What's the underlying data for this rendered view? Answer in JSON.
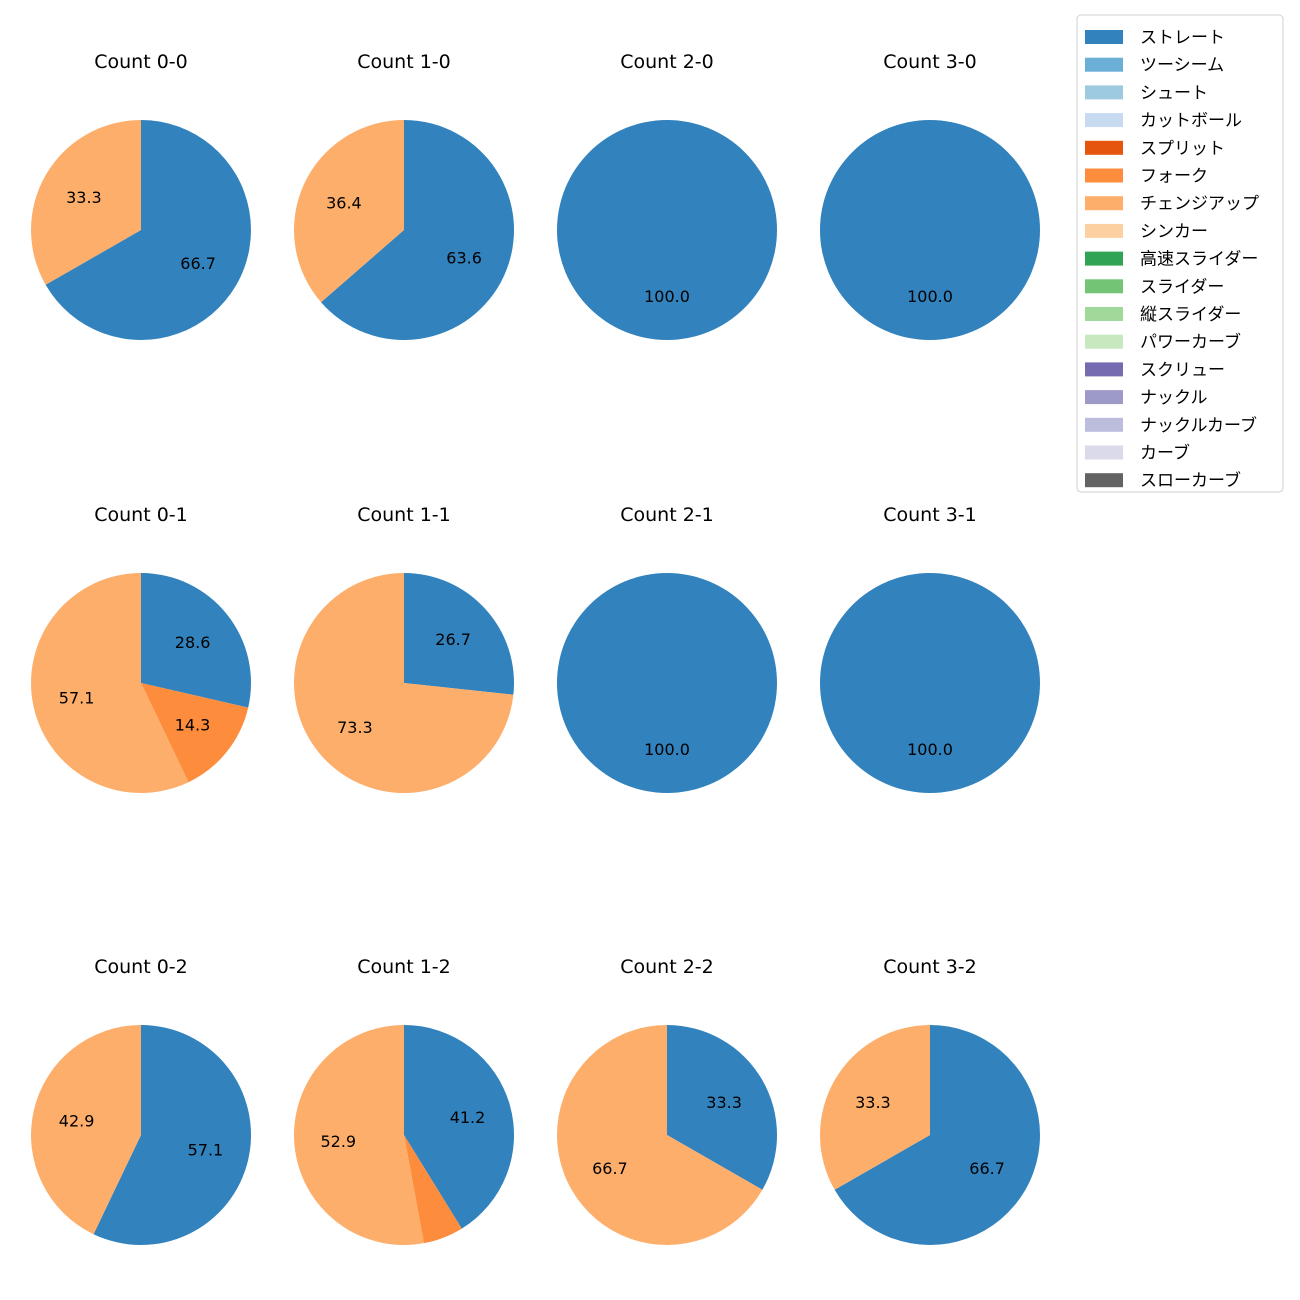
{
  "chart_data": {
    "type": "pie",
    "legend": {
      "placement": "top-right",
      "entries": [
        {
          "label": "ストレート",
          "color": "#3182bd"
        },
        {
          "label": "ツーシーム",
          "color": "#6baed6"
        },
        {
          "label": "シュート",
          "color": "#9ecae1"
        },
        {
          "label": "カットボール",
          "color": "#c6dbef"
        },
        {
          "label": "スプリット",
          "color": "#e6550d"
        },
        {
          "label": "フォーク",
          "color": "#fd8d3c"
        },
        {
          "label": "チェンジアップ",
          "color": "#fdae6b"
        },
        {
          "label": "シンカー",
          "color": "#fdd0a2"
        },
        {
          "label": "高速スライダー",
          "color": "#31a354"
        },
        {
          "label": "スライダー",
          "color": "#74c476"
        },
        {
          "label": "縦スライダー",
          "color": "#a1d99b"
        },
        {
          "label": "パワーカーブ",
          "color": "#c7e9c0"
        },
        {
          "label": "スクリュー",
          "color": "#756bb1"
        },
        {
          "label": "ナックル",
          "color": "#9e9ac8"
        },
        {
          "label": "ナックルカーブ",
          "color": "#bcbddc"
        },
        {
          "label": "カーブ",
          "color": "#dadaeb"
        },
        {
          "label": "スローカーブ",
          "color": "#636363"
        }
      ]
    },
    "pies": [
      {
        "title": "Count 0-0",
        "slices": [
          {
            "label": "ストレート",
            "value": 66.7,
            "text": "66.7"
          },
          {
            "label": "チェンジアップ",
            "value": 33.3,
            "text": "33.3"
          }
        ]
      },
      {
        "title": "Count 1-0",
        "slices": [
          {
            "label": "ストレート",
            "value": 63.6,
            "text": "63.6"
          },
          {
            "label": "チェンジアップ",
            "value": 36.4,
            "text": "36.4"
          }
        ]
      },
      {
        "title": "Count 2-0",
        "slices": [
          {
            "label": "ストレート",
            "value": 100.0,
            "text": "100.0"
          }
        ]
      },
      {
        "title": "Count 3-0",
        "slices": [
          {
            "label": "ストレート",
            "value": 100.0,
            "text": "100.0"
          }
        ]
      },
      {
        "title": "Count 0-1",
        "slices": [
          {
            "label": "ストレート",
            "value": 28.6,
            "text": "28.6"
          },
          {
            "label": "フォーク",
            "value": 14.3,
            "text": "14.3"
          },
          {
            "label": "チェンジアップ",
            "value": 57.1,
            "text": "57.1"
          }
        ]
      },
      {
        "title": "Count 1-1",
        "slices": [
          {
            "label": "ストレート",
            "value": 26.7,
            "text": "26.7"
          },
          {
            "label": "チェンジアップ",
            "value": 73.3,
            "text": "73.3"
          }
        ]
      },
      {
        "title": "Count 2-1",
        "slices": [
          {
            "label": "ストレート",
            "value": 100.0,
            "text": "100.0"
          }
        ]
      },
      {
        "title": "Count 3-1",
        "slices": [
          {
            "label": "ストレート",
            "value": 100.0,
            "text": "100.0"
          }
        ]
      },
      {
        "title": "Count 0-2",
        "slices": [
          {
            "label": "ストレート",
            "value": 57.1,
            "text": "57.1"
          },
          {
            "label": "チェンジアップ",
            "value": 42.9,
            "text": "42.9"
          }
        ]
      },
      {
        "title": "Count 1-2",
        "slices": [
          {
            "label": "ストレート",
            "value": 41.2,
            "text": "41.2"
          },
          {
            "label": "フォーク",
            "value": 5.9,
            "text": ""
          },
          {
            "label": "チェンジアップ",
            "value": 52.9,
            "text": "52.9"
          }
        ]
      },
      {
        "title": "Count 2-2",
        "slices": [
          {
            "label": "ストレート",
            "value": 33.3,
            "text": "33.3"
          },
          {
            "label": "チェンジアップ",
            "value": 66.7,
            "text": "66.7"
          }
        ]
      },
      {
        "title": "Count 3-2",
        "slices": [
          {
            "label": "ストレート",
            "value": 66.7,
            "text": "66.7"
          },
          {
            "label": "チェンジアップ",
            "value": 33.3,
            "text": "33.3"
          }
        ]
      }
    ]
  }
}
